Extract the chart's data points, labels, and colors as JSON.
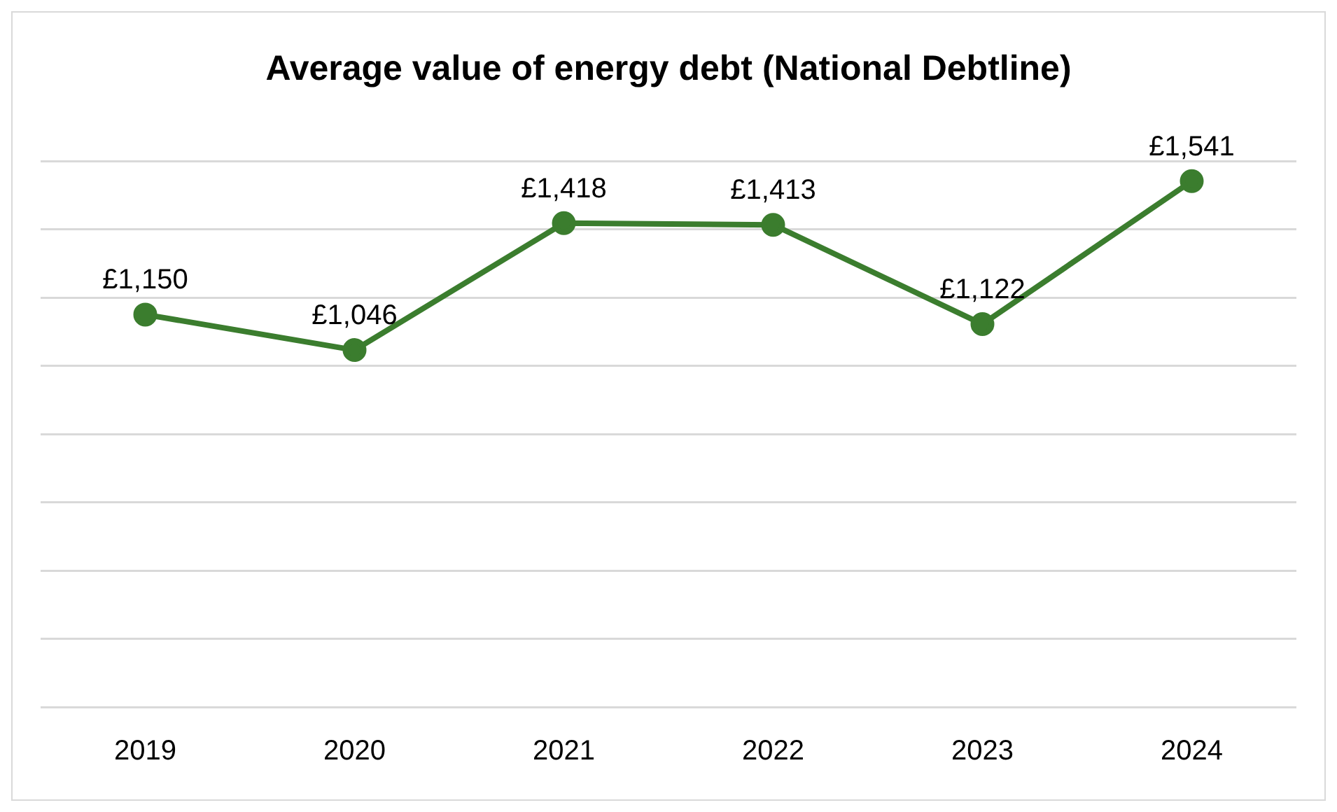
{
  "chart_data": {
    "type": "line",
    "title": "Average value of energy debt (National Debtline)",
    "categories": [
      "2019",
      "2020",
      "2021",
      "2022",
      "2023",
      "2024"
    ],
    "series": [
      {
        "color": "#3b7d2e",
        "values": [
          1150,
          1046,
          1418,
          1413,
          1122,
          1541
        ],
        "value_labels": [
          "£1,150",
          "£1,046",
          "£1,418",
          "£1,413",
          "£1,122",
          "£1,541"
        ]
      }
    ],
    "ylim": [
      0,
      1600
    ],
    "yticks": [
      {
        "value": 0,
        "label": null
      },
      {
        "value": 200,
        "label": null
      },
      {
        "value": 400,
        "label": null
      },
      {
        "value": 600,
        "label": null
      },
      {
        "value": 800,
        "label": null
      },
      {
        "value": 1000,
        "label": null
      },
      {
        "value": 1200,
        "label": null
      },
      {
        "value": 1400,
        "label": null
      },
      {
        "value": 1600,
        "label": null
      }
    ],
    "tick_labels": "x",
    "grid": "y",
    "legend": false,
    "marker": "circle",
    "line_style": "solid"
  }
}
